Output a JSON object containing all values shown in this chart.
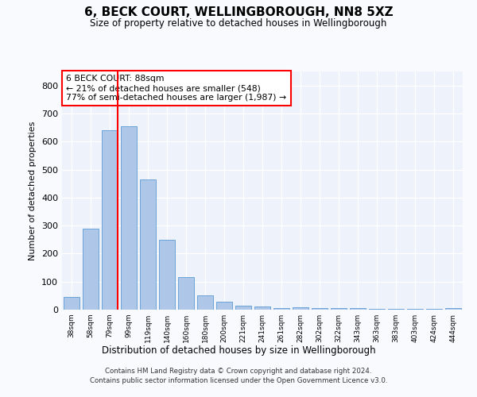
{
  "title": "6, BECK COURT, WELLINGBOROUGH, NN8 5XZ",
  "subtitle": "Size of property relative to detached houses in Wellingborough",
  "xlabel": "Distribution of detached houses by size in Wellingborough",
  "ylabel": "Number of detached properties",
  "categories": [
    "38sqm",
    "58sqm",
    "79sqm",
    "99sqm",
    "119sqm",
    "140sqm",
    "160sqm",
    "180sqm",
    "200sqm",
    "221sqm",
    "241sqm",
    "261sqm",
    "282sqm",
    "302sqm",
    "322sqm",
    "343sqm",
    "363sqm",
    "383sqm",
    "403sqm",
    "424sqm",
    "444sqm"
  ],
  "values": [
    45,
    290,
    640,
    655,
    465,
    250,
    115,
    50,
    28,
    15,
    12,
    5,
    8,
    5,
    5,
    5,
    3,
    2,
    2,
    2,
    5
  ],
  "bar_color": "#aec6e8",
  "bar_edge_color": "#5b9bd5",
  "red_line_index": 2,
  "red_line_label": "6 BECK COURT: 88sqm",
  "annotation_line1": "← 21% of detached houses are smaller (548)",
  "annotation_line2": "77% of semi-detached houses are larger (1,987) →",
  "ylim": [
    0,
    850
  ],
  "yticks": [
    0,
    100,
    200,
    300,
    400,
    500,
    600,
    700,
    800
  ],
  "background_color": "#eef2fa",
  "grid_color": "#ffffff",
  "fig_background": "#f8fafd",
  "footer_line1": "Contains HM Land Registry data © Crown copyright and database right 2024.",
  "footer_line2": "Contains public sector information licensed under the Open Government Licence v3.0."
}
